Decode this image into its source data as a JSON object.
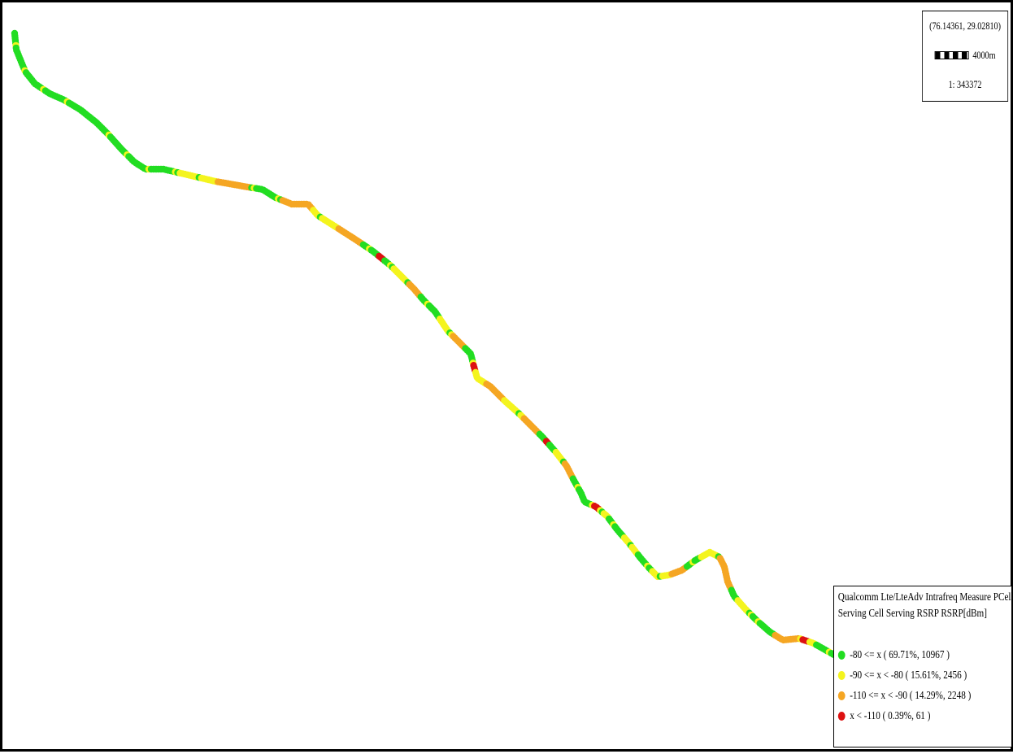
{
  "map": {
    "coordinate": "(76.14361, 29.02810)",
    "scale_distance": "4000m",
    "scale_ratio": "1: 343372"
  },
  "legend": {
    "title_line1": "Qualcomm Lte/LteAdv Intrafreq Measure PCell",
    "title_line2": "Serving Cell Serving RSRP RSRP[dBm]",
    "items": [
      {
        "label": "-80 <= x ( 69.71%, 10967 )",
        "color": "#22dd22"
      },
      {
        "label": "-90 <= x < -80 ( 15.61%, 2456 )",
        "color": "#f4f41e"
      },
      {
        "label": "-110 <= x < -90 ( 14.29%, 2248 )",
        "color": "#f5a623"
      },
      {
        "label": "x < -110 ( 0.39%, 61 )",
        "color": "#dd1111"
      }
    ]
  }
}
